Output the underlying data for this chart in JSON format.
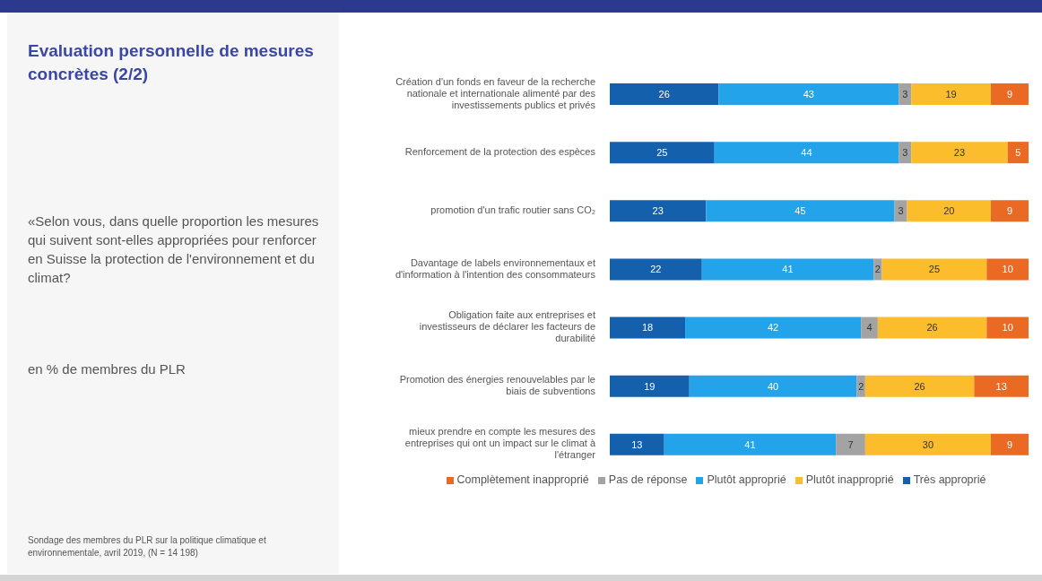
{
  "chart_data": {
    "type": "bar",
    "orientation": "horizontal",
    "stacked": true,
    "data_labels": true,
    "legend": "bottom",
    "grid": false,
    "title": "Evaluation personnelle de mesures concrètes (2/2)",
    "subtitle": "«Selon vous, dans quelle proportion les mesures qui suivent sont-elles appropriées pour renforcer en Suisse la protection de l'environnement et du climat?",
    "annotations": [
      "en % de membres du PLR",
      "Sondage des membres du PLR sur la politique climatique et environnementale, avril 2019, (N = 14 198)"
    ],
    "categories": [
      "Création d'un fonds en faveur de la recherche nationale et internationale alimenté par des investissements publics et privés",
      "Renforcement de la protection des espèces",
      "promotion d'un trafic routier sans CO₂",
      "Davantage de labels environnementaux et d'information à l'intention des consommateurs",
      "Obligation faite aux entreprises et investisseurs de déclarer les facteurs de durabilité",
      "Promotion des énergies renouvelables par le biais de subventions",
      "mieux prendre en compte les mesures des entreprises qui ont un impact sur le climat à l'étranger"
    ],
    "series": [
      {
        "name": "Très approprié",
        "color": "#1560ad",
        "values": [
          26,
          25,
          23,
          22,
          18,
          19,
          13
        ]
      },
      {
        "name": "Plutôt approprié",
        "color": "#22a3ea",
        "values": [
          43,
          44,
          45,
          41,
          42,
          40,
          41
        ]
      },
      {
        "name": "Pas de réponse",
        "color": "#a3a3a3",
        "values": [
          3,
          3,
          3,
          2,
          4,
          2,
          7
        ]
      },
      {
        "name": "Plutôt inapproprié",
        "color": "#fbbd2c",
        "values": [
          19,
          23,
          20,
          25,
          26,
          26,
          30
        ]
      },
      {
        "name": "Complètement inapproprié",
        "color": "#ea6a24",
        "values": [
          9,
          5,
          9,
          10,
          10,
          13,
          9
        ]
      }
    ]
  }
}
